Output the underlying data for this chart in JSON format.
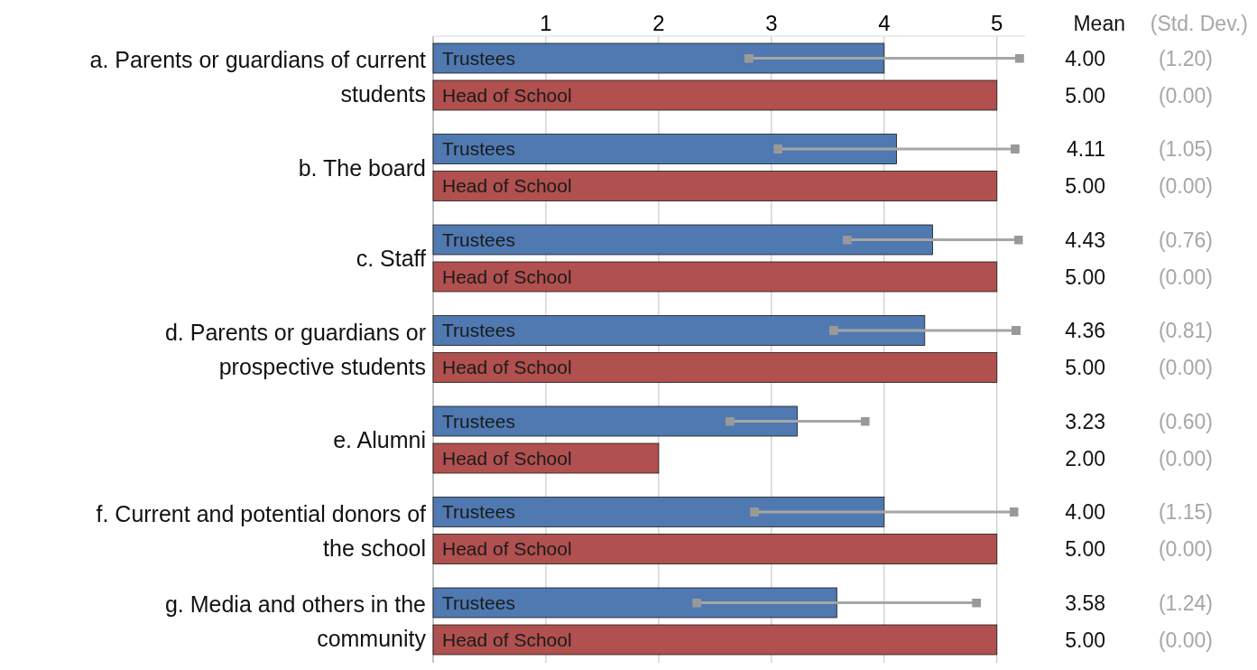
{
  "chart_data": {
    "type": "bar",
    "orientation": "horizontal",
    "categories": [
      "a. Parents or guardians of current students",
      "b. The board",
      "c. Staff",
      "d. Parents or guardians or prospective students",
      "e. Alumni",
      "f. Current and potential donors of the school",
      "g. Media and others in the community"
    ],
    "series": [
      {
        "name": "Trustees",
        "color": "#4f79b0",
        "values": [
          4.0,
          4.11,
          4.43,
          4.36,
          3.23,
          4.0,
          3.58
        ],
        "errors": [
          1.2,
          1.05,
          0.76,
          0.81,
          0.6,
          1.15,
          1.24
        ]
      },
      {
        "name": "Head of School",
        "color": "#b0504f",
        "values": [
          5,
          5,
          5,
          5,
          2,
          5,
          5
        ]
      }
    ],
    "xlim": [
      0,
      5.25
    ],
    "xticks": [
      1,
      2,
      3,
      4,
      5
    ],
    "grid": "x",
    "annotations": [
      "Mean",
      "(Std. Dev.)",
      "4.00",
      "(1.20)",
      "5.00",
      "(0.00)",
      "4.11",
      "(1.05)",
      "5.00",
      "(0.00)",
      "4.43",
      "(0.76)",
      "5.00",
      "(0.00)",
      "4.36",
      "(0.81)",
      "5.00",
      "(0.00)",
      "3.23",
      "(0.60)",
      "2.00",
      "(0.00)",
      "4.00",
      "(1.15)",
      "5.00",
      "(0.00)",
      "3.58",
      "(1.24)",
      "5.00",
      "(0.00)"
    ]
  }
}
